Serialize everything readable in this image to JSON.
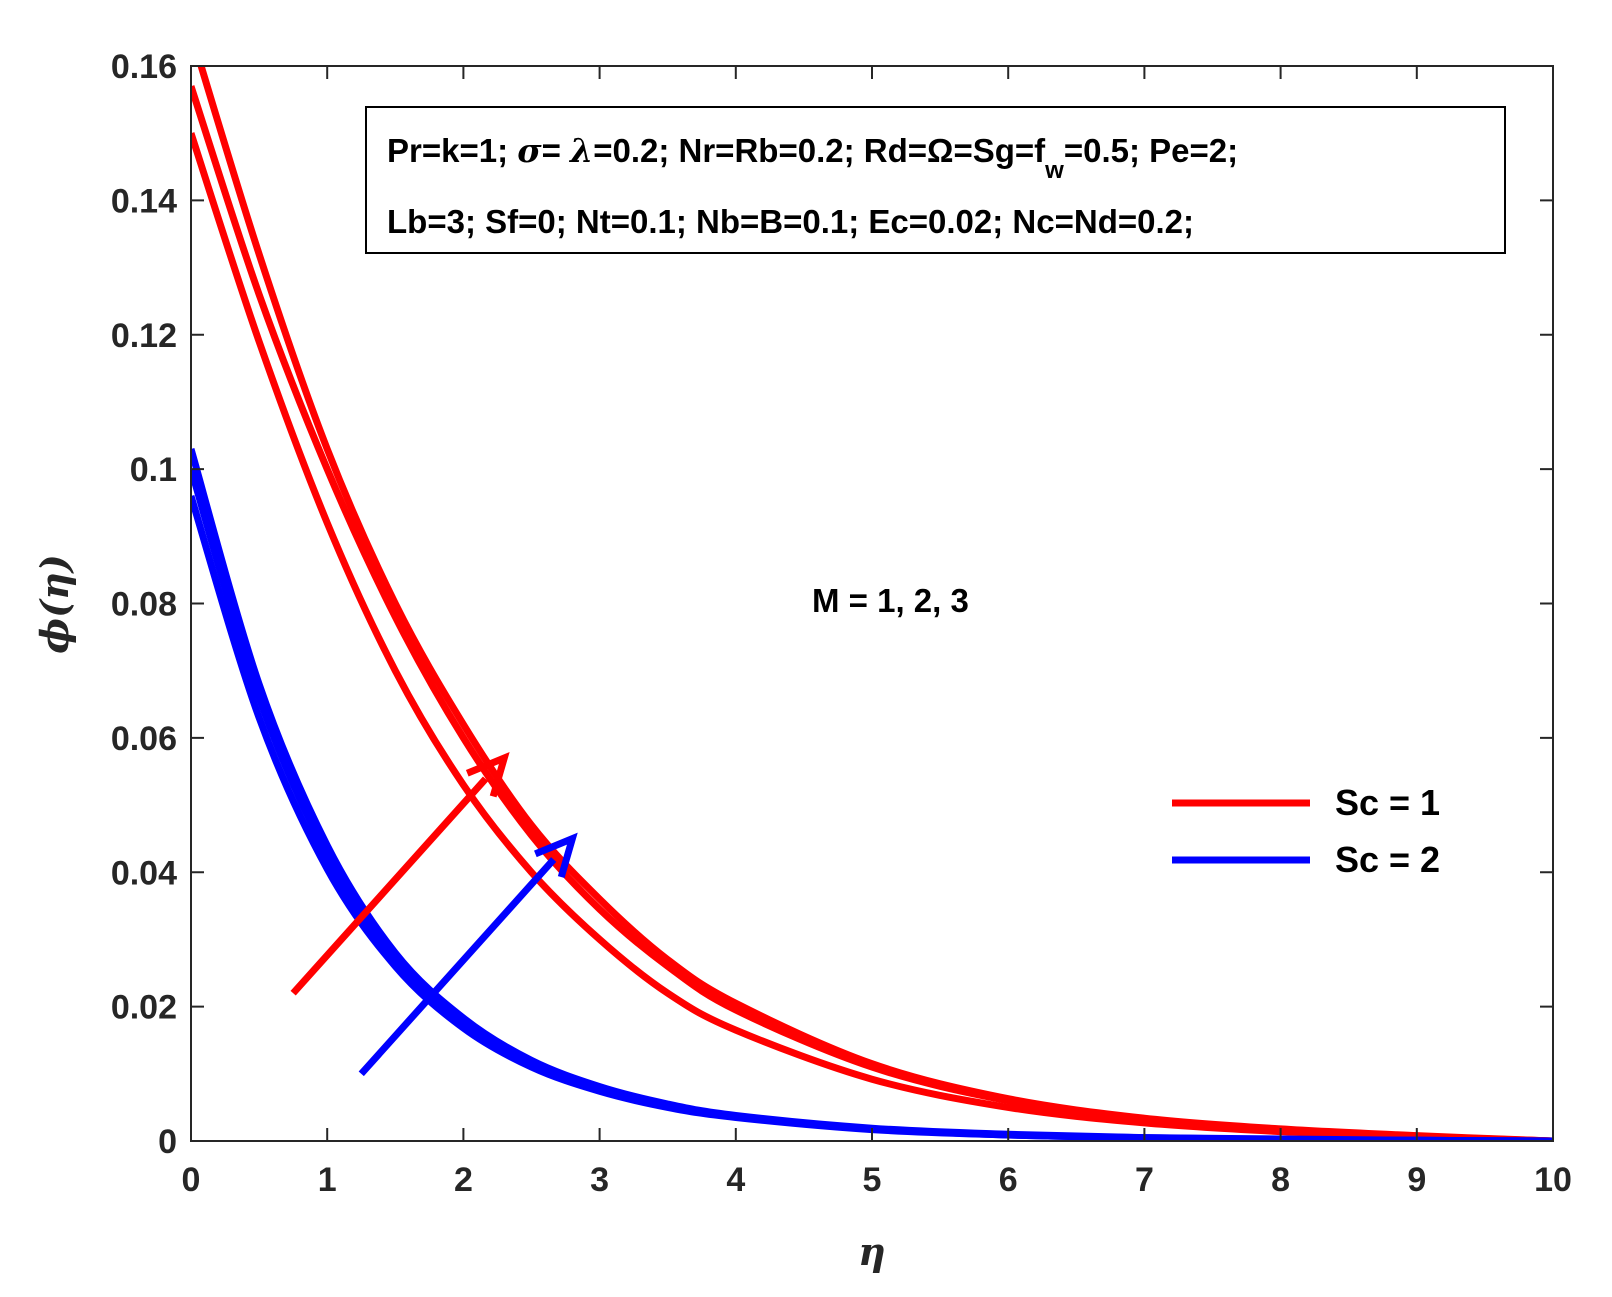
{
  "chart_data": {
    "type": "line",
    "title": "",
    "xlabel": "η",
    "ylabel": "ϕ(η)",
    "xlim": [
      0,
      10
    ],
    "ylim": [
      0,
      0.16
    ],
    "xticks": [
      "0",
      "1",
      "2",
      "3",
      "4",
      "5",
      "6",
      "7",
      "8",
      "9",
      "10"
    ],
    "yticks": [
      "0",
      "0.02",
      "0.04",
      "0.06",
      "0.08",
      "0.1",
      "0.12",
      "0.14",
      "0.16"
    ],
    "grid": false,
    "legend_position": "right",
    "legend": [
      {
        "label": "Sc = 1",
        "color": "#ff0000"
      },
      {
        "label": "Sc = 2",
        "color": "#0000ff"
      }
    ],
    "parameter_box": {
      "line1_parts": [
        "Pr=k=1; ",
        "σ",
        "= ",
        "λ",
        "=0.2; Nr=Rb=0.2; Rd=Ω=Sg=f",
        "w",
        "=0.5; Pe=2;"
      ],
      "line2": "Lb=3; Sf=0; Nt=0.1; Nb=B=0.1; Ec=0.02; Nc=Nd=0.2;"
    },
    "annotation": "M = 1, 2, 3",
    "arrows": [
      {
        "color": "#ff0000",
        "from": [
          0.75,
          0.022
        ],
        "to": [
          2.3,
          0.057
        ]
      },
      {
        "color": "#0000ff",
        "from": [
          1.25,
          0.01
        ],
        "to": [
          2.8,
          0.045
        ]
      }
    ],
    "series": [
      {
        "group": "Sc = 1",
        "color": "#ff0000",
        "x": [
          0,
          0.5,
          1,
          1.5,
          2,
          2.5,
          3,
          3.5,
          4,
          5,
          6,
          7,
          8,
          9,
          10
        ],
        "y": [
          0.165,
          0.132,
          0.103,
          0.08,
          0.062,
          0.047,
          0.036,
          0.027,
          0.0205,
          0.0115,
          0.0063,
          0.0034,
          0.0018,
          0.0008,
          0.0
        ]
      },
      {
        "group": "Sc = 1",
        "color": "#ff0000",
        "x": [
          0,
          0.5,
          1,
          1.5,
          2,
          2.5,
          3,
          3.5,
          4,
          5,
          6,
          7,
          8,
          9,
          10
        ],
        "y": [
          0.157,
          0.126,
          0.1,
          0.078,
          0.06,
          0.0455,
          0.0345,
          0.026,
          0.0195,
          0.011,
          0.006,
          0.0032,
          0.0017,
          0.0007,
          0.0
        ]
      },
      {
        "group": "Sc = 1",
        "color": "#ff0000",
        "x": [
          0,
          0.5,
          1,
          1.5,
          2,
          2.5,
          3,
          3.5,
          4,
          5,
          6,
          7,
          8,
          9,
          10
        ],
        "y": [
          0.15,
          0.119,
          0.092,
          0.07,
          0.053,
          0.04,
          0.03,
          0.022,
          0.0165,
          0.0092,
          0.005,
          0.0027,
          0.0014,
          0.0006,
          0.0
        ]
      },
      {
        "group": "Sc = 2",
        "color": "#0000ff",
        "x": [
          0,
          0.5,
          1,
          1.5,
          2,
          2.5,
          3,
          3.5,
          4,
          5,
          6,
          7,
          8,
          9,
          10
        ],
        "y": [
          0.103,
          0.068,
          0.044,
          0.028,
          0.0183,
          0.012,
          0.0081,
          0.0055,
          0.0038,
          0.0019,
          0.001,
          0.0005,
          0.0003,
          0.0001,
          0.0
        ]
      },
      {
        "group": "Sc = 2",
        "color": "#0000ff",
        "x": [
          0,
          0.5,
          1,
          1.5,
          2,
          2.5,
          3,
          3.5,
          4,
          5,
          6,
          7,
          8,
          9,
          10
        ],
        "y": [
          0.1,
          0.066,
          0.0425,
          0.027,
          0.0175,
          0.0115,
          0.0078,
          0.0053,
          0.0037,
          0.0018,
          0.0009,
          0.0005,
          0.0002,
          0.0001,
          0.0
        ]
      },
      {
        "group": "Sc = 2",
        "color": "#0000ff",
        "x": [
          0,
          0.5,
          1,
          1.5,
          2,
          2.5,
          3,
          3.5,
          4,
          5,
          6,
          7,
          8,
          9,
          10
        ],
        "y": [
          0.096,
          0.063,
          0.0405,
          0.026,
          0.0168,
          0.011,
          0.0074,
          0.005,
          0.0035,
          0.0017,
          0.0009,
          0.0004,
          0.0002,
          0.0001,
          0.0
        ]
      }
    ]
  }
}
